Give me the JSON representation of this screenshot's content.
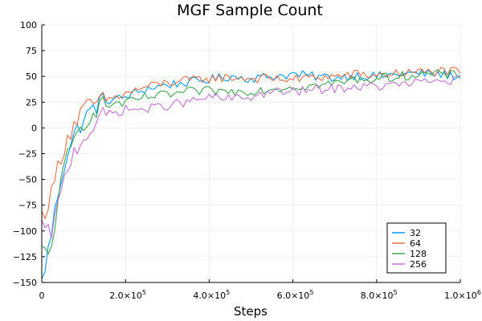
{
  "chart_data": {
    "type": "line",
    "title": "MGF Sample Count",
    "xlabel": "Steps",
    "ylabel": "",
    "xlim": [
      0,
      1000000
    ],
    "ylim": [
      -150,
      100
    ],
    "grid": true,
    "legend_position": "bottom-right",
    "x_ticks": [
      {
        "value": 0,
        "mantissa": "0",
        "exp": ""
      },
      {
        "value": 200000,
        "mantissa": "2.0×10",
        "exp": "5"
      },
      {
        "value": 400000,
        "mantissa": "4.0×10",
        "exp": "5"
      },
      {
        "value": 600000,
        "mantissa": "6.0×10",
        "exp": "5"
      },
      {
        "value": 800000,
        "mantissa": "8.0×10",
        "exp": "5"
      },
      {
        "value": 1000000,
        "mantissa": "1.0×10",
        "exp": "6"
      }
    ],
    "y_ticks": [
      {
        "value": 100,
        "label": "100"
      },
      {
        "value": 75,
        "label": "75"
      },
      {
        "value": 50,
        "label": "50"
      },
      {
        "value": 25,
        "label": "25"
      },
      {
        "value": 0,
        "label": "0"
      },
      {
        "value": -25,
        "label": "−25"
      },
      {
        "value": -50,
        "label": "−50"
      },
      {
        "value": -75,
        "label": "−75"
      },
      {
        "value": -100,
        "label": "−100"
      },
      {
        "value": -125,
        "label": "−125"
      },
      {
        "value": -150,
        "label": "−150"
      }
    ],
    "x": [
      0,
      20000,
      40000,
      60000,
      80000,
      100000,
      120000,
      140000,
      160000,
      180000,
      200000,
      250000,
      300000,
      350000,
      400000,
      450000,
      500000,
      550000,
      600000,
      650000,
      700000,
      750000,
      800000,
      850000,
      900000,
      950000,
      1000000
    ],
    "series": [
      {
        "name": "32",
        "color": "#009AFA",
        "values": [
          -150,
          -110,
          -60,
          -25,
          -5,
          8,
          18,
          25,
          27,
          28,
          30,
          38,
          42,
          44,
          47,
          50,
          48,
          50,
          52,
          50,
          49,
          51,
          50,
          52,
          53,
          52,
          50
        ]
      },
      {
        "name": "64",
        "color": "#E36F47",
        "values": [
          -85,
          -70,
          -35,
          -10,
          5,
          18,
          22,
          26,
          28,
          30,
          33,
          40,
          44,
          46,
          48,
          49,
          48,
          48,
          47,
          49,
          50,
          52,
          51,
          53,
          54,
          55,
          54
        ]
      },
      {
        "name": "128",
        "color": "#3EA44E",
        "values": [
          -120,
          -125,
          -65,
          -30,
          -10,
          5,
          15,
          22,
          22,
          24,
          24,
          30,
          32,
          35,
          36,
          35,
          36,
          38,
          40,
          41,
          43,
          47,
          48,
          50,
          52,
          52,
          51
        ]
      },
      {
        "name": "256",
        "color": "#C271D2",
        "values": [
          -95,
          -105,
          -75,
          -40,
          -20,
          -10,
          0,
          10,
          14,
          15,
          18,
          18,
          22,
          25,
          30,
          28,
          30,
          35,
          35,
          37,
          38,
          40,
          40,
          42,
          44,
          46,
          46
        ]
      }
    ]
  }
}
